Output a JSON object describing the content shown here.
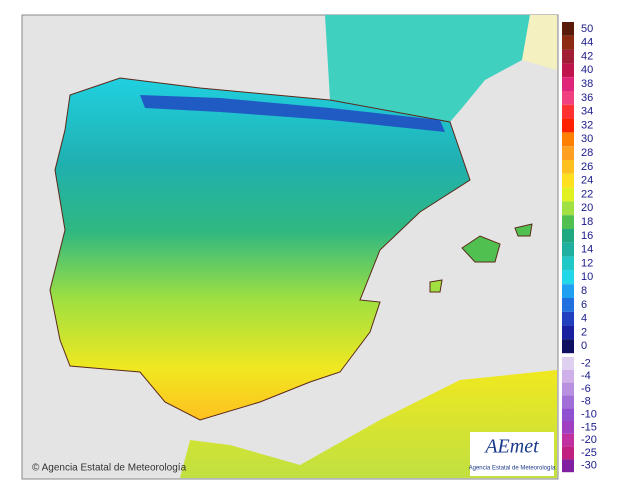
{
  "credit": "© Agencia Estatal de Meteorología",
  "logo": {
    "name": "AEmet",
    "subtitle": "Agencia Estatal de Meteorología"
  },
  "legend": {
    "upper": [
      {
        "label": "50",
        "color": "#5a1a0a"
      },
      {
        "label": "44",
        "color": "#8b2a10"
      },
      {
        "label": "42",
        "color": "#a01d35"
      },
      {
        "label": "40",
        "color": "#c0144d"
      },
      {
        "label": "38",
        "color": "#e0247a"
      },
      {
        "label": "36",
        "color": "#f04080"
      },
      {
        "label": "34",
        "color": "#ff3030"
      },
      {
        "label": "32",
        "color": "#ff2000"
      },
      {
        "label": "30",
        "color": "#ff8000"
      },
      {
        "label": "28",
        "color": "#ffa020"
      },
      {
        "label": "26",
        "color": "#ffc020"
      },
      {
        "label": "24",
        "color": "#ffe020"
      },
      {
        "label": "22",
        "color": "#e0f020"
      },
      {
        "label": "20",
        "color": "#a0e040"
      },
      {
        "label": "18",
        "color": "#50c050"
      },
      {
        "label": "16",
        "color": "#20a880"
      },
      {
        "label": "14",
        "color": "#20b0a0"
      },
      {
        "label": "12",
        "color": "#20c8c8"
      },
      {
        "label": "10",
        "color": "#20d8e8"
      },
      {
        "label": "8",
        "color": "#20a0f0"
      },
      {
        "label": "6",
        "color": "#2070e0"
      },
      {
        "label": "4",
        "color": "#2040c0"
      },
      {
        "label": "2",
        "color": "#1820a0"
      },
      {
        "label": "0",
        "color": "#101060"
      }
    ],
    "lower": [
      {
        "label": "-2",
        "color": "#e0d0f0"
      },
      {
        "label": "-4",
        "color": "#d0b0e8"
      },
      {
        "label": "-6",
        "color": "#b890e0"
      },
      {
        "label": "-8",
        "color": "#a070d8"
      },
      {
        "label": "-10",
        "color": "#9050d0"
      },
      {
        "label": "-15",
        "color": "#a040c0"
      },
      {
        "label": "-20",
        "color": "#c030a0"
      },
      {
        "label": "-25",
        "color": "#c02080"
      },
      {
        "label": "-30",
        "color": "#8020a0"
      }
    ]
  }
}
